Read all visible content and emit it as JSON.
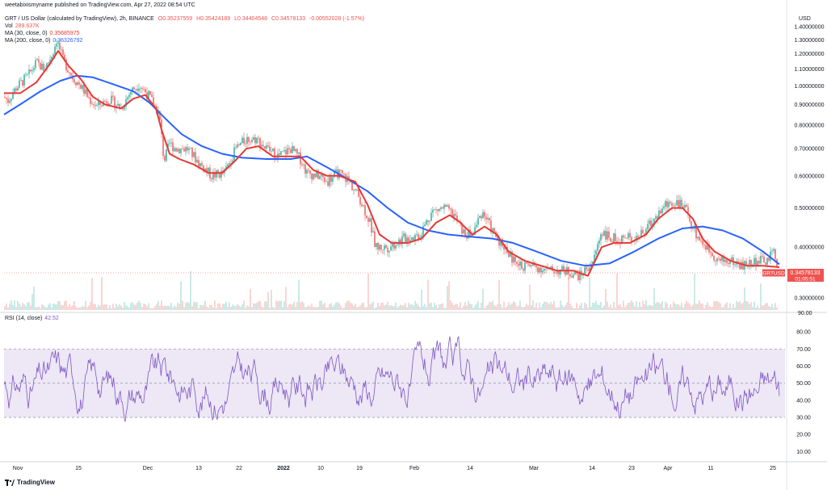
{
  "header": {
    "published": "weetabixismyname published on TradingView.com, Apr 27, 2022 08:54 UTC",
    "symbol_line": "GRT / US Dollar (calculated by TradingView), 2h, BINANCE",
    "ohlc": {
      "o": "O0.35237559",
      "h": "H0.35424189",
      "l": "L0.34404548",
      "c": "C0.34578133",
      "chg": "-0.00552028 (-1.57%)"
    },
    "vol_label": "Vol",
    "vol_value": "289.637K",
    "ma30_label": "MA (30, close, 0)",
    "ma30_value": "0.35685975",
    "ma200_label": "MA (200, close, 0)",
    "ma200_value": "0.36326792",
    "rsi_label": "RSI (14, close)",
    "rsi_value": "42.52",
    "currency": "USD"
  },
  "price_tag": {
    "symbol": "GRTUSD",
    "price": "0.34578133",
    "countdown": "01:05:51"
  },
  "footer": {
    "brand": "TradingView"
  },
  "colors": {
    "ma30": "#e53935",
    "ma200": "#2962ff",
    "up": "#26a69a",
    "down": "#ef5350",
    "rsi": "#7e57c2",
    "rsi_band": "#ede7f6"
  },
  "chart_data": {
    "type": "line",
    "price_axis": {
      "ticks": [
        "1.40000000",
        "1.30000000",
        "1.20000000",
        "1.10000000",
        "1.00000000",
        "0.90000000",
        "0.80000000",
        "0.70000000",
        "0.60000000",
        "0.50000000",
        "0.40000000",
        "0.30000000"
      ],
      "scale": "log",
      "range": [
        0.28,
        1.42
      ]
    },
    "volume_axis_tick": "90.00",
    "rsi_axis": {
      "ticks": [
        "80.00",
        "70.00",
        "60.00",
        "50.00",
        "40.00",
        "30.00",
        "20.00",
        "10.00"
      ],
      "range": [
        5,
        90
      ],
      "band": [
        30,
        70
      ],
      "mid": 50
    },
    "x_labels": [
      "Nov",
      "15",
      "Dec",
      "13",
      "22",
      "2022",
      "10",
      "19",
      "Feb",
      "14",
      "Mar",
      "14",
      "23",
      "Apr",
      "11",
      "25"
    ],
    "x_positions": [
      22,
      97,
      183,
      246,
      296,
      351,
      397,
      445,
      513,
      582,
      661,
      733,
      782,
      827,
      880,
      957
    ],
    "price_path": [
      [
        0,
        0.96
      ],
      [
        10,
        0.92
      ],
      [
        20,
        0.99
      ],
      [
        35,
        1.06
      ],
      [
        45,
        1.14
      ],
      [
        55,
        1.1
      ],
      [
        65,
        1.2
      ],
      [
        70,
        1.3
      ],
      [
        78,
        1.16
      ],
      [
        90,
        1.05
      ],
      [
        100,
        1.0
      ],
      [
        110,
        0.93
      ],
      [
        120,
        0.89
      ],
      [
        135,
        0.93
      ],
      [
        150,
        0.88
      ],
      [
        162,
        0.97
      ],
      [
        172,
        1.01
      ],
      [
        185,
        0.94
      ],
      [
        197,
        0.85
      ],
      [
        203,
        0.65
      ],
      [
        210,
        0.72
      ],
      [
        218,
        0.7
      ],
      [
        232,
        0.7
      ],
      [
        248,
        0.64
      ],
      [
        262,
        0.6
      ],
      [
        278,
        0.61
      ],
      [
        292,
        0.7
      ],
      [
        305,
        0.74
      ],
      [
        318,
        0.74
      ],
      [
        330,
        0.7
      ],
      [
        345,
        0.67
      ],
      [
        360,
        0.7
      ],
      [
        372,
        0.66
      ],
      [
        380,
        0.61
      ],
      [
        395,
        0.6
      ],
      [
        405,
        0.58
      ],
      [
        418,
        0.61
      ],
      [
        430,
        0.59
      ],
      [
        445,
        0.53
      ],
      [
        458,
        0.46
      ],
      [
        465,
        0.4
      ],
      [
        480,
        0.4
      ],
      [
        500,
        0.42
      ],
      [
        520,
        0.43
      ],
      [
        535,
        0.49
      ],
      [
        550,
        0.5
      ],
      [
        562,
        0.48
      ],
      [
        575,
        0.43
      ],
      [
        585,
        0.43
      ],
      [
        597,
        0.49
      ],
      [
        612,
        0.43
      ],
      [
        625,
        0.4
      ],
      [
        640,
        0.36
      ],
      [
        660,
        0.36
      ],
      [
        680,
        0.35
      ],
      [
        700,
        0.35
      ],
      [
        718,
        0.34
      ],
      [
        735,
        0.37
      ],
      [
        745,
        0.44
      ],
      [
        755,
        0.42
      ],
      [
        775,
        0.42
      ],
      [
        795,
        0.43
      ],
      [
        810,
        0.47
      ],
      [
        825,
        0.51
      ],
      [
        838,
        0.52
      ],
      [
        850,
        0.49
      ],
      [
        862,
        0.43
      ],
      [
        875,
        0.4
      ],
      [
        890,
        0.37
      ],
      [
        905,
        0.37
      ],
      [
        920,
        0.36
      ],
      [
        935,
        0.37
      ],
      [
        950,
        0.37
      ],
      [
        958,
        0.39
      ],
      [
        965,
        0.35
      ]
    ],
    "ma30_path": [
      [
        5,
        0.96
      ],
      [
        25,
        0.96
      ],
      [
        45,
        1.02
      ],
      [
        60,
        1.12
      ],
      [
        72,
        1.22
      ],
      [
        85,
        1.12
      ],
      [
        100,
        1.04
      ],
      [
        115,
        0.94
      ],
      [
        130,
        0.9
      ],
      [
        150,
        0.88
      ],
      [
        165,
        0.93
      ],
      [
        180,
        0.95
      ],
      [
        193,
        0.88
      ],
      [
        200,
        0.78
      ],
      [
        210,
        0.68
      ],
      [
        222,
        0.66
      ],
      [
        240,
        0.64
      ],
      [
        258,
        0.61
      ],
      [
        275,
        0.61
      ],
      [
        290,
        0.65
      ],
      [
        305,
        0.7
      ],
      [
        320,
        0.71
      ],
      [
        338,
        0.67
      ],
      [
        355,
        0.67
      ],
      [
        372,
        0.67
      ],
      [
        388,
        0.62
      ],
      [
        405,
        0.6
      ],
      [
        420,
        0.6
      ],
      [
        440,
        0.58
      ],
      [
        455,
        0.51
      ],
      [
        470,
        0.43
      ],
      [
        485,
        0.41
      ],
      [
        505,
        0.41
      ],
      [
        522,
        0.42
      ],
      [
        540,
        0.46
      ],
      [
        557,
        0.48
      ],
      [
        570,
        0.46
      ],
      [
        585,
        0.43
      ],
      [
        600,
        0.45
      ],
      [
        615,
        0.43
      ],
      [
        630,
        0.39
      ],
      [
        650,
        0.37
      ],
      [
        670,
        0.36
      ],
      [
        690,
        0.35
      ],
      [
        710,
        0.35
      ],
      [
        728,
        0.34
      ],
      [
        745,
        0.4
      ],
      [
        760,
        0.41
      ],
      [
        780,
        0.41
      ],
      [
        800,
        0.43
      ],
      [
        815,
        0.47
      ],
      [
        832,
        0.5
      ],
      [
        845,
        0.5
      ],
      [
        858,
        0.47
      ],
      [
        870,
        0.42
      ],
      [
        885,
        0.39
      ],
      [
        905,
        0.37
      ],
      [
        925,
        0.36
      ],
      [
        945,
        0.36
      ],
      [
        965,
        0.357
      ]
    ],
    "ma200_path": [
      [
        5,
        0.85
      ],
      [
        25,
        0.9
      ],
      [
        50,
        0.97
      ],
      [
        75,
        1.03
      ],
      [
        95,
        1.06
      ],
      [
        115,
        1.05
      ],
      [
        140,
        1.01
      ],
      [
        165,
        0.97
      ],
      [
        185,
        0.91
      ],
      [
        205,
        0.83
      ],
      [
        225,
        0.76
      ],
      [
        250,
        0.71
      ],
      [
        275,
        0.68
      ],
      [
        300,
        0.665
      ],
      [
        330,
        0.66
      ],
      [
        360,
        0.66
      ],
      [
        380,
        0.67
      ],
      [
        405,
        0.63
      ],
      [
        430,
        0.59
      ],
      [
        455,
        0.55
      ],
      [
        480,
        0.5
      ],
      [
        505,
        0.46
      ],
      [
        530,
        0.44
      ],
      [
        555,
        0.43
      ],
      [
        580,
        0.425
      ],
      [
        610,
        0.42
      ],
      [
        635,
        0.41
      ],
      [
        665,
        0.39
      ],
      [
        695,
        0.37
      ],
      [
        725,
        0.36
      ],
      [
        755,
        0.365
      ],
      [
        785,
        0.39
      ],
      [
        815,
        0.42
      ],
      [
        845,
        0.445
      ],
      [
        870,
        0.45
      ],
      [
        895,
        0.44
      ],
      [
        920,
        0.42
      ],
      [
        945,
        0.39
      ],
      [
        965,
        0.363
      ]
    ]
  }
}
